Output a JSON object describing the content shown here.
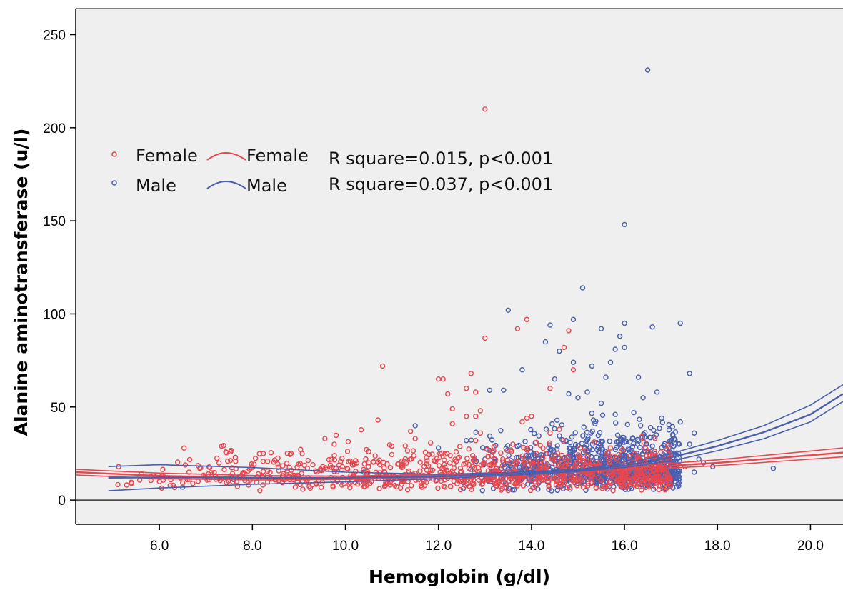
{
  "chart_data": {
    "type": "scatter",
    "xlabel": "Hemoglobin (g/dl)",
    "ylabel": "Alanine aminotransferase (u/l)",
    "xlim": [
      4.2,
      20.7
    ],
    "ylim": [
      -13,
      264
    ],
    "x_ticks": [
      "6.0",
      "8.0",
      "10.0",
      "12.0",
      "14.0",
      "16.0",
      "18.0",
      "20.0"
    ],
    "y_ticks": [
      "0",
      "50",
      "100",
      "150",
      "200",
      "250"
    ],
    "grid": false,
    "reference_line_y": 0,
    "legend_position": "upper-left",
    "colors": {
      "female": "#e8474f",
      "male": "#4a5fae",
      "background": "#efefef"
    },
    "legend": {
      "rows": [
        {
          "marker_label": "Female",
          "line_label": "Female",
          "stat": "R square=0.015, p<0.001"
        },
        {
          "marker_label": "Male",
          "line_label": "Male",
          "stat": "R square=0.037, p<0.001"
        }
      ]
    },
    "series": [
      {
        "name": "Female",
        "kind": "points",
        "outliers": [
          [
            13.0,
            210
          ],
          [
            10.8,
            72
          ],
          [
            13.0,
            87
          ],
          [
            13.9,
            97
          ],
          [
            13.7,
            92
          ],
          [
            14.7,
            82
          ],
          [
            14.8,
            91
          ],
          [
            12.0,
            65
          ],
          [
            12.1,
            65
          ],
          [
            12.3,
            49
          ],
          [
            12.7,
            68
          ],
          [
            12.2,
            57
          ],
          [
            12.6,
            60
          ],
          [
            12.8,
            58
          ],
          [
            14.4,
            60
          ],
          [
            14.9,
            70
          ],
          [
            10.7,
            43
          ],
          [
            12.6,
            45
          ],
          [
            12.8,
            45
          ],
          [
            12.9,
            48
          ],
          [
            12.3,
            41
          ],
          [
            11.4,
            37
          ],
          [
            11.5,
            33
          ],
          [
            13.9,
            44
          ],
          [
            14.0,
            45
          ],
          [
            13.8,
            42
          ],
          [
            10.5,
            26
          ],
          [
            11.0,
            29
          ],
          [
            12.8,
            32
          ],
          [
            12.9,
            36
          ],
          [
            13.6,
            30
          ],
          [
            14.1,
            31
          ],
          [
            14.4,
            36
          ],
          [
            14.6,
            38
          ],
          [
            9.3,
            19
          ],
          [
            10.1,
            21
          ],
          [
            16.3,
            22
          ],
          [
            17.3,
            18
          ],
          [
            5.4,
            9
          ],
          [
            6.0,
            10
          ],
          [
            6.6,
            11
          ],
          [
            7.2,
            13
          ]
        ],
        "bulk": {
          "x_range": [
            4.9,
            17.0
          ],
          "y_center": 13,
          "y_spread": 8,
          "count": 950,
          "seed": 11
        }
      },
      {
        "name": "Male",
        "kind": "points",
        "outliers": [
          [
            16.5,
            231
          ],
          [
            16.0,
            148
          ],
          [
            15.1,
            114
          ],
          [
            13.5,
            102
          ],
          [
            14.9,
            97
          ],
          [
            16.0,
            95
          ],
          [
            17.2,
            95
          ],
          [
            14.4,
            94
          ],
          [
            16.6,
            93
          ],
          [
            15.5,
            92
          ],
          [
            15.9,
            88
          ],
          [
            16.0,
            82
          ],
          [
            14.3,
            85
          ],
          [
            15.8,
            81
          ],
          [
            14.6,
            80
          ],
          [
            14.9,
            74
          ],
          [
            13.8,
            70
          ],
          [
            15.3,
            72
          ],
          [
            15.7,
            74
          ],
          [
            17.4,
            68
          ],
          [
            15.6,
            66
          ],
          [
            16.3,
            66
          ],
          [
            14.5,
            65
          ],
          [
            13.1,
            59
          ],
          [
            13.4,
            59
          ],
          [
            14.8,
            57
          ],
          [
            15.2,
            58
          ],
          [
            16.7,
            58
          ],
          [
            15.0,
            55
          ],
          [
            16.4,
            55
          ],
          [
            15.5,
            52
          ],
          [
            16.8,
            44
          ],
          [
            16.2,
            47
          ],
          [
            17.2,
            42
          ],
          [
            15.8,
            46
          ],
          [
            11.5,
            40
          ],
          [
            12.0,
            28
          ],
          [
            12.6,
            32
          ],
          [
            17.5,
            36
          ],
          [
            17.0,
            30
          ],
          [
            17.4,
            30
          ],
          [
            17.6,
            22
          ],
          [
            17.7,
            20
          ],
          [
            19.2,
            17
          ],
          [
            17.9,
            18
          ],
          [
            6.5,
            7
          ],
          [
            7.6,
            11
          ],
          [
            9.0,
            13
          ],
          [
            9.8,
            17
          ],
          [
            10.4,
            15
          ],
          [
            17.5,
            15
          ],
          [
            13.0,
            22
          ],
          [
            13.4,
            20
          ]
        ],
        "bulk": {
          "x_range": [
            12.5,
            17.2
          ],
          "y_center": 16,
          "y_spread": 10,
          "count": 950,
          "seed": 29
        }
      },
      {
        "name": "Female",
        "kind": "fit",
        "fit": [
          [
            4.2,
            15.0
          ],
          [
            6.0,
            13.0
          ],
          [
            8.0,
            12.0
          ],
          [
            10.0,
            12.0
          ],
          [
            12.0,
            13.0
          ],
          [
            14.0,
            14.5
          ],
          [
            16.0,
            17.0
          ],
          [
            18.0,
            20.0
          ],
          [
            20.7,
            25.5
          ]
        ],
        "ci_upper": [
          [
            4.2,
            16.5
          ],
          [
            6.0,
            14.5
          ],
          [
            8.0,
            13.2
          ],
          [
            10.0,
            12.9
          ],
          [
            12.0,
            13.7
          ],
          [
            14.0,
            15.1
          ],
          [
            16.0,
            18.0
          ],
          [
            18.0,
            21.6
          ],
          [
            20.7,
            28.0
          ]
        ],
        "ci_lower": [
          [
            4.2,
            13.5
          ],
          [
            6.0,
            11.5
          ],
          [
            8.0,
            10.8
          ],
          [
            10.0,
            11.1
          ],
          [
            12.0,
            12.3
          ],
          [
            14.0,
            13.9
          ],
          [
            16.0,
            16.0
          ],
          [
            18.0,
            18.5
          ],
          [
            20.7,
            23.2
          ]
        ]
      },
      {
        "name": "Male",
        "kind": "fit",
        "fit": [
          [
            4.9,
            12.0
          ],
          [
            6.0,
            12.2
          ],
          [
            8.0,
            12.0
          ],
          [
            10.0,
            12.0
          ],
          [
            12.0,
            12.7
          ],
          [
            14.0,
            14.5
          ],
          [
            15.0,
            16.0
          ],
          [
            16.0,
            18.5
          ],
          [
            17.0,
            23.0
          ],
          [
            18.0,
            29.0
          ],
          [
            19.0,
            36.5
          ],
          [
            20.0,
            46.0
          ],
          [
            20.7,
            57.0
          ]
        ],
        "ci_upper": [
          [
            4.9,
            18.0
          ],
          [
            6.0,
            19.0
          ],
          [
            8.0,
            17.5
          ],
          [
            10.0,
            15.0
          ],
          [
            12.0,
            13.8
          ],
          [
            14.0,
            15.2
          ],
          [
            15.0,
            16.6
          ],
          [
            16.0,
            19.5
          ],
          [
            17.0,
            25.0
          ],
          [
            18.0,
            32.0
          ],
          [
            19.0,
            40.0
          ],
          [
            20.0,
            51.0
          ],
          [
            20.7,
            62.0
          ]
        ],
        "ci_lower": [
          [
            4.9,
            5.0
          ],
          [
            6.0,
            6.5
          ],
          [
            8.0,
            8.5
          ],
          [
            10.0,
            9.8
          ],
          [
            12.0,
            11.5
          ],
          [
            14.0,
            13.8
          ],
          [
            15.0,
            15.4
          ],
          [
            16.0,
            17.5
          ],
          [
            17.0,
            21.0
          ],
          [
            18.0,
            26.5
          ],
          [
            19.0,
            33.0
          ],
          [
            20.0,
            42.0
          ],
          [
            20.7,
            53.0
          ]
        ]
      }
    ]
  }
}
